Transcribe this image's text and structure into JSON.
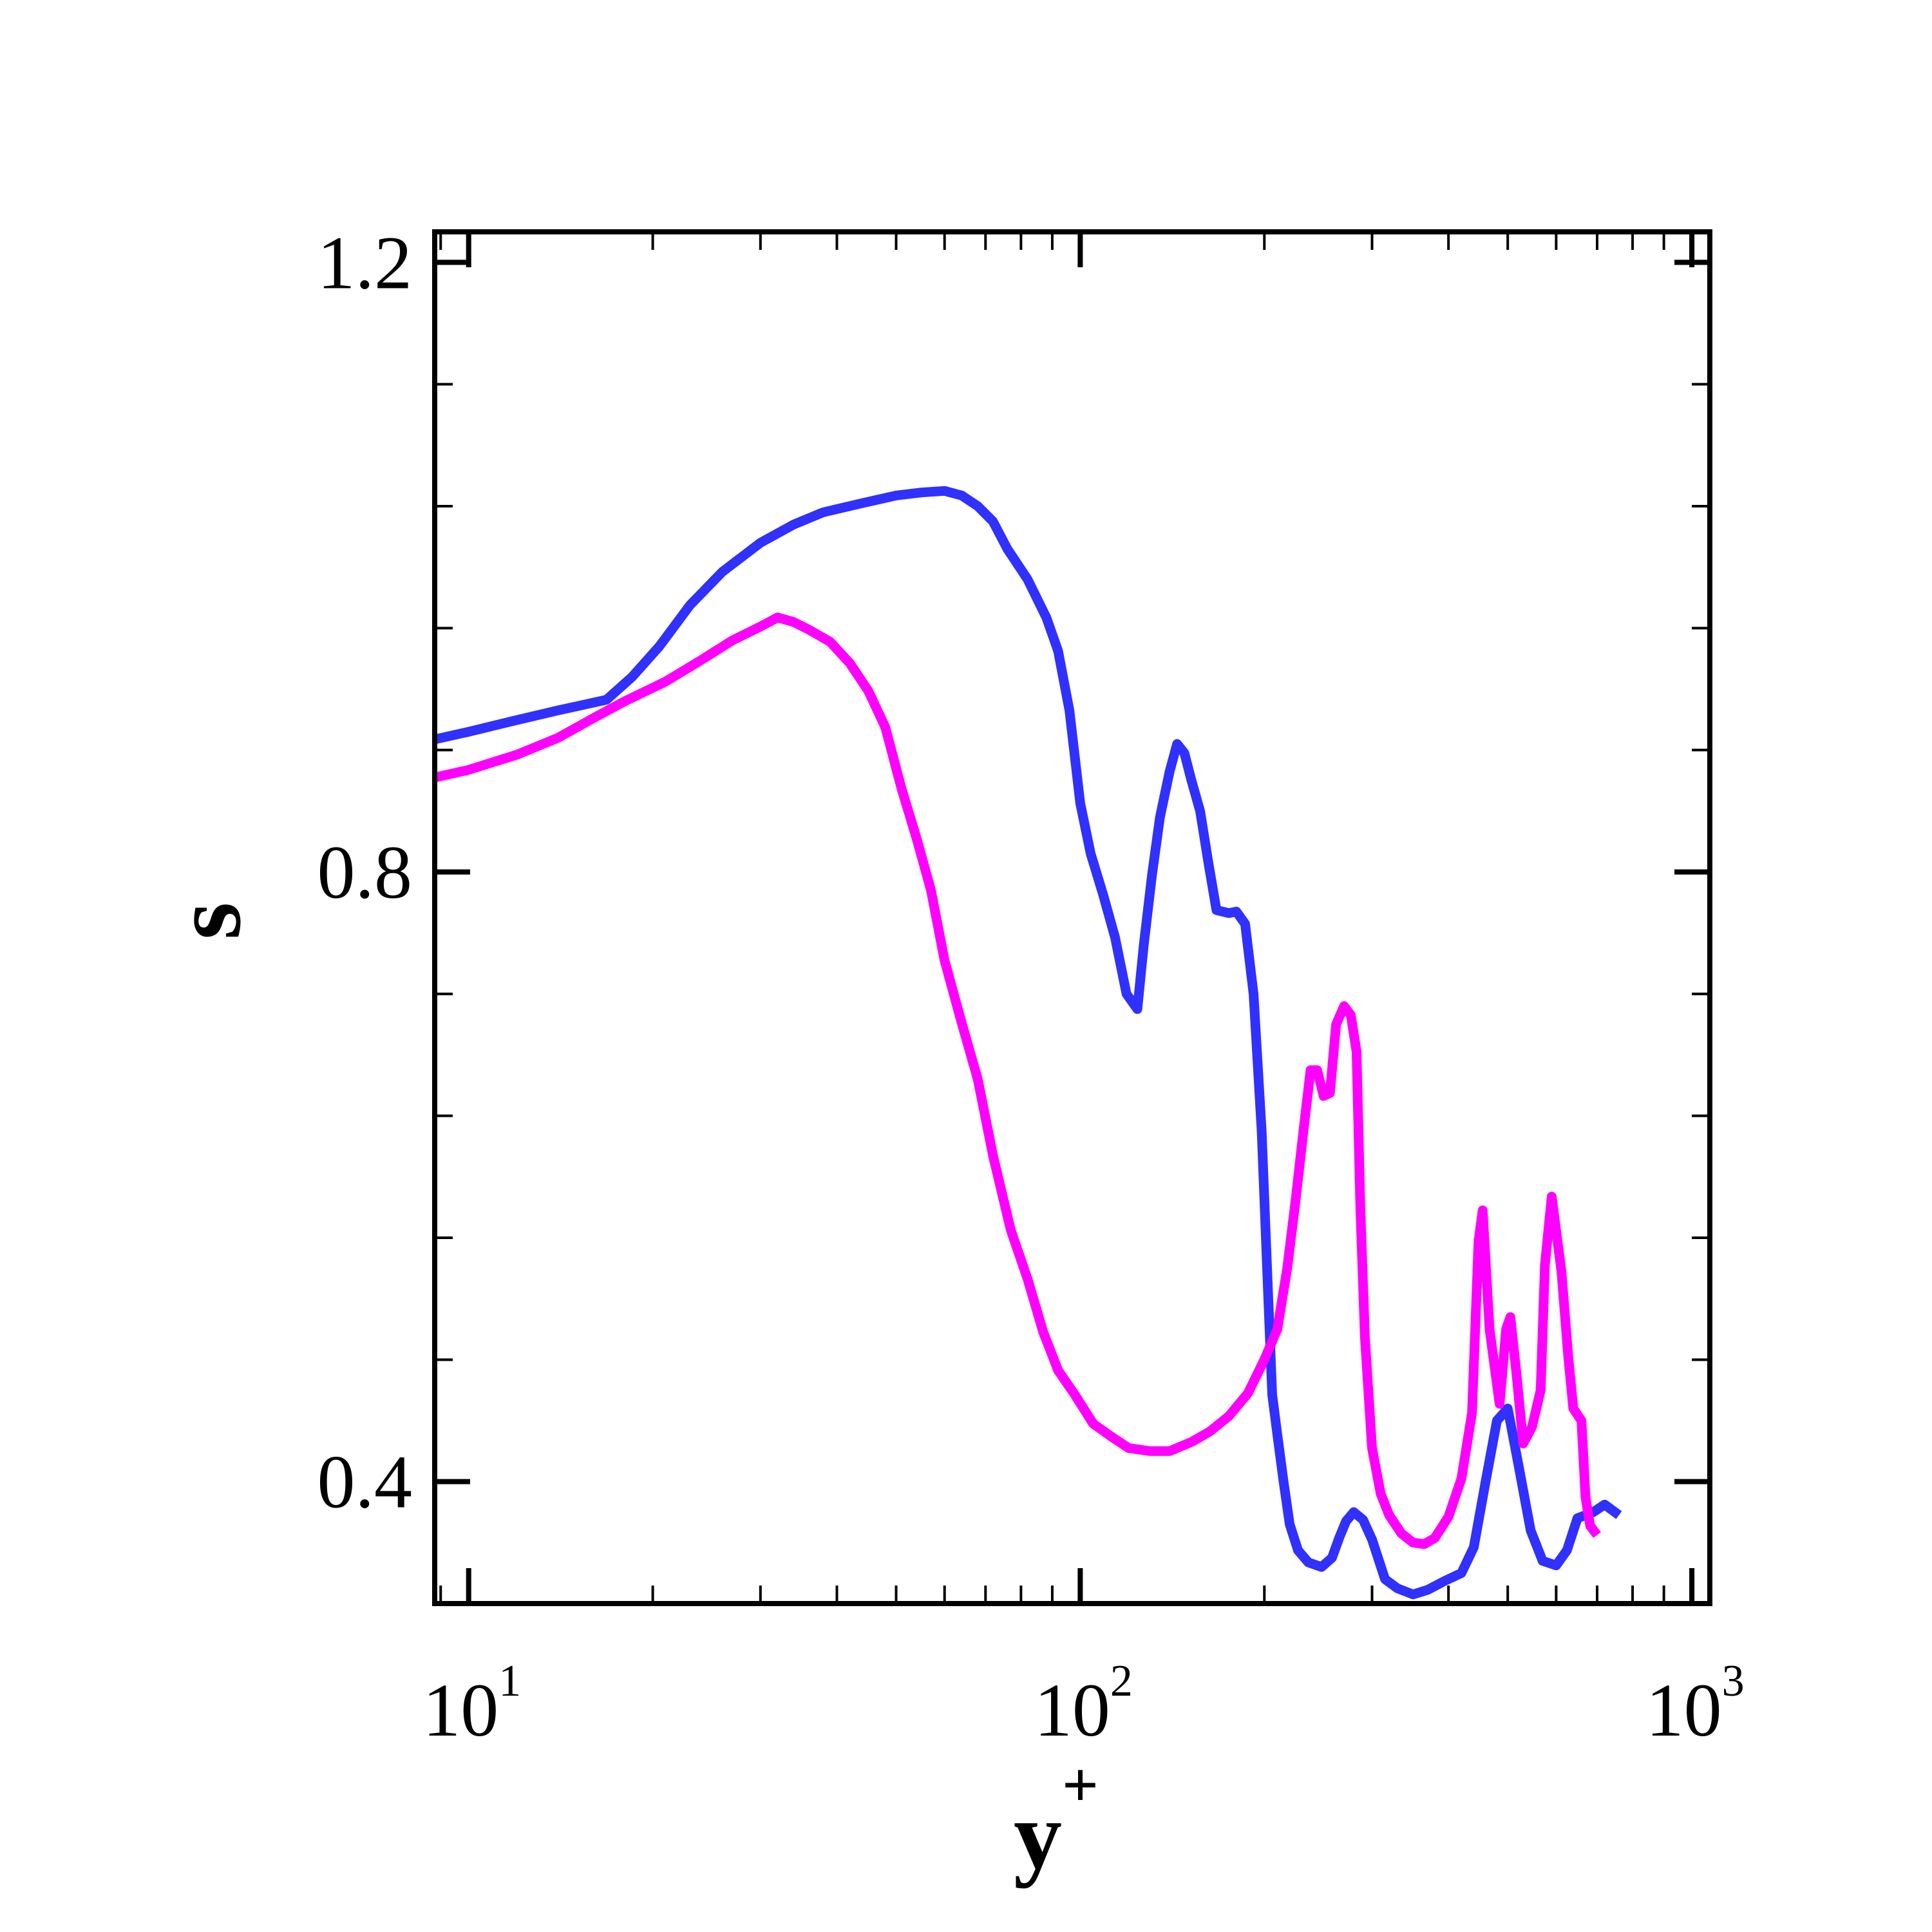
{
  "chart_data": {
    "type": "line",
    "title": "",
    "xlabel": "y",
    "xlabel_superscript": "+",
    "ylabel": "s",
    "xscale": "log",
    "xlim": [
      8.8,
      1070
    ],
    "ylim": [
      0.32,
      1.22
    ],
    "x_ticks": [
      {
        "base": "10",
        "exp": "1",
        "value": 10
      },
      {
        "base": "10",
        "exp": "2",
        "value": 100
      },
      {
        "base": "10",
        "exp": "3",
        "value": 1000
      }
    ],
    "y_ticks": [
      {
        "label": "1.2",
        "value": 1.2
      },
      {
        "label": "0.8",
        "value": 0.8
      },
      {
        "label": "0.4",
        "value": 0.4
      }
    ],
    "y_minor_step": 0.08,
    "grid": false,
    "legend": "none",
    "series": [
      {
        "color": "#3030ff",
        "points": [
          [
            8.8,
            0.887
          ],
          [
            10,
            0.892
          ],
          [
            11.8,
            0.899
          ],
          [
            14,
            0.906
          ],
          [
            16.8,
            0.913
          ],
          [
            18.5,
            0.928
          ],
          [
            20.5,
            0.948
          ],
          [
            23,
            0.975
          ],
          [
            26,
            0.997
          ],
          [
            30,
            1.016
          ],
          [
            34,
            1.028
          ],
          [
            38,
            1.036
          ],
          [
            44,
            1.042
          ],
          [
            50,
            1.047
          ],
          [
            55,
            1.049
          ],
          [
            60,
            1.05
          ],
          [
            64,
            1.047
          ],
          [
            68,
            1.04
          ],
          [
            72,
            1.03
          ],
          [
            76,
            1.012
          ],
          [
            82,
            0.992
          ],
          [
            88,
            0.967
          ],
          [
            92,
            0.945
          ],
          [
            96,
            0.906
          ],
          [
            100,
            0.845
          ],
          [
            104,
            0.812
          ],
          [
            109,
            0.785
          ],
          [
            114,
            0.757
          ],
          [
            119,
            0.72
          ],
          [
            124,
            0.71
          ],
          [
            127,
            0.752
          ],
          [
            131,
            0.798
          ],
          [
            135,
            0.836
          ],
          [
            140,
            0.866
          ],
          [
            144,
            0.884
          ],
          [
            148,
            0.878
          ],
          [
            152,
            0.86
          ],
          [
            157,
            0.84
          ],
          [
            162,
            0.806
          ],
          [
            167,
            0.775
          ],
          [
            175,
            0.773
          ],
          [
            180,
            0.774
          ],
          [
            186,
            0.766
          ],
          [
            192,
            0.72
          ],
          [
            198,
            0.63
          ],
          [
            203,
            0.52
          ],
          [
            206,
            0.457
          ],
          [
            210,
            0.431
          ],
          [
            215,
            0.4
          ],
          [
            220,
            0.372
          ],
          [
            227,
            0.355
          ],
          [
            236,
            0.347
          ],
          [
            248,
            0.344
          ],
          [
            258,
            0.35
          ],
          [
            265,
            0.363
          ],
          [
            272,
            0.374
          ],
          [
            280,
            0.38
          ],
          [
            290,
            0.375
          ],
          [
            300,
            0.362
          ],
          [
            315,
            0.336
          ],
          [
            330,
            0.33
          ],
          [
            350,
            0.326
          ],
          [
            370,
            0.329
          ],
          [
            395,
            0.335
          ],
          [
            420,
            0.34
          ],
          [
            440,
            0.357
          ],
          [
            460,
            0.4
          ],
          [
            480,
            0.44
          ],
          [
            500,
            0.448
          ],
          [
            520,
            0.412
          ],
          [
            545,
            0.368
          ],
          [
            570,
            0.348
          ],
          [
            600,
            0.345
          ],
          [
            625,
            0.355
          ],
          [
            650,
            0.376
          ],
          [
            690,
            0.38
          ],
          [
            720,
            0.385
          ],
          [
            760,
            0.378
          ]
        ]
      },
      {
        "color": "#ff00ff",
        "points": [
          [
            8.8,
            0.862
          ],
          [
            10,
            0.867
          ],
          [
            12,
            0.877
          ],
          [
            14,
            0.888
          ],
          [
            16,
            0.901
          ],
          [
            18,
            0.912
          ],
          [
            21,
            0.925
          ],
          [
            24,
            0.939
          ],
          [
            27,
            0.952
          ],
          [
            30,
            0.961
          ],
          [
            32,
            0.967
          ],
          [
            34,
            0.964
          ],
          [
            36,
            0.959
          ],
          [
            39,
            0.951
          ],
          [
            42,
            0.937
          ],
          [
            45,
            0.919
          ],
          [
            48,
            0.895
          ],
          [
            51,
            0.855
          ],
          [
            54,
            0.822
          ],
          [
            57,
            0.788
          ],
          [
            60,
            0.742
          ],
          [
            64,
            0.701
          ],
          [
            68,
            0.664
          ],
          [
            72,
            0.614
          ],
          [
            77,
            0.565
          ],
          [
            82,
            0.533
          ],
          [
            87,
            0.498
          ],
          [
            92,
            0.473
          ],
          [
            98,
            0.457
          ],
          [
            105,
            0.438
          ],
          [
            112,
            0.43
          ],
          [
            120,
            0.422
          ],
          [
            130,
            0.42
          ],
          [
            140,
            0.42
          ],
          [
            152,
            0.426
          ],
          [
            163,
            0.433
          ],
          [
            175,
            0.443
          ],
          [
            188,
            0.458
          ],
          [
            200,
            0.48
          ],
          [
            210,
            0.5
          ],
          [
            218,
            0.54
          ],
          [
            225,
            0.585
          ],
          [
            232,
            0.632
          ],
          [
            238,
            0.67
          ],
          [
            244,
            0.67
          ],
          [
            250,
            0.653
          ],
          [
            256,
            0.655
          ],
          [
            262,
            0.7
          ],
          [
            270,
            0.712
          ],
          [
            277,
            0.706
          ],
          [
            283,
            0.682
          ],
          [
            287,
            0.58
          ],
          [
            292,
            0.495
          ],
          [
            300,
            0.422
          ],
          [
            310,
            0.392
          ],
          [
            320,
            0.378
          ],
          [
            335,
            0.366
          ],
          [
            350,
            0.36
          ],
          [
            365,
            0.359
          ],
          [
            380,
            0.363
          ],
          [
            400,
            0.377
          ],
          [
            420,
            0.402
          ],
          [
            437,
            0.445
          ],
          [
            448,
            0.558
          ],
          [
            455,
            0.578
          ],
          [
            467,
            0.5
          ],
          [
            485,
            0.451
          ],
          [
            497,
            0.5
          ],
          [
            505,
            0.508
          ],
          [
            517,
            0.47
          ],
          [
            530,
            0.425
          ],
          [
            548,
            0.436
          ],
          [
            566,
            0.46
          ],
          [
            575,
            0.542
          ],
          [
            590,
            0.587
          ],
          [
            612,
            0.538
          ],
          [
            628,
            0.482
          ],
          [
            640,
            0.448
          ],
          [
            660,
            0.44
          ],
          [
            670,
            0.39
          ],
          [
            682,
            0.371
          ],
          [
            700,
            0.365
          ]
        ]
      }
    ]
  }
}
